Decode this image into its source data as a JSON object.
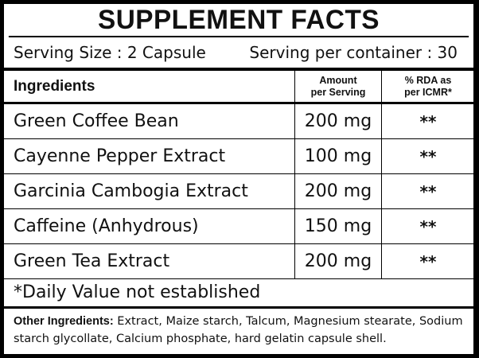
{
  "title": "SUPPLEMENT FACTS",
  "serving_size": "Serving Size : 2 Capsule",
  "serving_per_container": "Serving per container : 30",
  "headers": {
    "ingredients": "Ingredients",
    "amount": "Amount\nper Serving",
    "rda": "% RDA as\nper ICMR*"
  },
  "rows": [
    {
      "ingredient": "Green Coffee Bean",
      "amount": "200 mg",
      "rda": "**"
    },
    {
      "ingredient": "Cayenne Pepper Extract",
      "amount": "100 mg",
      "rda": "**"
    },
    {
      "ingredient": "Garcinia Cambogia Extract",
      "amount": "200 mg",
      "rda": "**"
    },
    {
      "ingredient": "Caffeine (Anhydrous)",
      "amount": "150 mg",
      "rda": "**"
    },
    {
      "ingredient": "Green Tea Extract",
      "amount": "200 mg",
      "rda": "**"
    }
  ],
  "footnote": "*Daily Value not established",
  "other_ingredients": {
    "label": "Other Ingredients:",
    "text": "Extract, Maize starch, Talcum, Magnesium stearate, Sodium starch glycollate, Calcium phosphate, hard gelatin capsule shell."
  }
}
